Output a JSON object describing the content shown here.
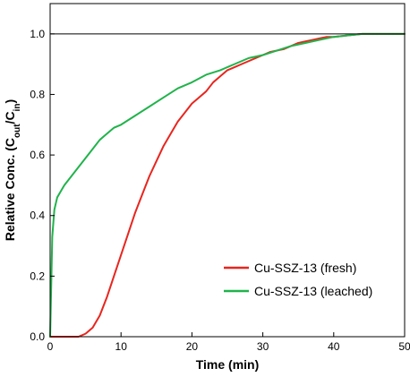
{
  "chart_data": {
    "type": "line",
    "xlabel": "Time (min)",
    "ylabel": {
      "prefix": "Relative Conc. (C",
      "sub1": "out",
      "mid": "/C",
      "sub2": "in",
      "suffix": ")"
    },
    "xlim": [
      0,
      50
    ],
    "ylim": [
      0,
      1.1
    ],
    "x_ticks": [
      0,
      10,
      20,
      30,
      40,
      50
    ],
    "y_ticks": [
      0.0,
      0.2,
      0.4,
      0.6,
      0.8,
      1.0
    ],
    "x_tick_labels": [
      "0",
      "10",
      "20",
      "30",
      "40",
      "50"
    ],
    "y_tick_labels": [
      "0.0",
      "0.2",
      "0.4",
      "0.6",
      "0.8",
      "1.0"
    ],
    "reference_line_y": 1.0,
    "grid": false,
    "legend_position": "bottom-right",
    "series": [
      {
        "name": "Cu-SSZ-13 (fresh)",
        "color": "#e8251e",
        "x": [
          0,
          4,
          5,
          6,
          7,
          8,
          9,
          10,
          11,
          12,
          13,
          14,
          15,
          16,
          17,
          18,
          19,
          20,
          21,
          22,
          23,
          24,
          25,
          26,
          27,
          28,
          29,
          30,
          31,
          32,
          33,
          34,
          35,
          36,
          37,
          38,
          39,
          40,
          42,
          44,
          46,
          48,
          50
        ],
        "y": [
          0.0,
          0.0,
          0.01,
          0.03,
          0.07,
          0.13,
          0.2,
          0.27,
          0.34,
          0.41,
          0.47,
          0.53,
          0.58,
          0.63,
          0.67,
          0.71,
          0.74,
          0.77,
          0.79,
          0.81,
          0.84,
          0.86,
          0.88,
          0.89,
          0.9,
          0.91,
          0.92,
          0.93,
          0.94,
          0.945,
          0.95,
          0.96,
          0.97,
          0.975,
          0.98,
          0.985,
          0.99,
          0.99,
          0.995,
          1.0,
          1.0,
          1.0,
          1.0
        ]
      },
      {
        "name": "Cu-SSZ-13 (leached)",
        "color": "#20b34b",
        "x": [
          0,
          0.3,
          0.6,
          1,
          1.5,
          2,
          3,
          4,
          5,
          6,
          7,
          8,
          9,
          10,
          12,
          14,
          16,
          18,
          20,
          22,
          24,
          26,
          28,
          30,
          32,
          34,
          36,
          38,
          40,
          42,
          44,
          46,
          48,
          50
        ],
        "y": [
          0.0,
          0.33,
          0.42,
          0.46,
          0.48,
          0.5,
          0.53,
          0.56,
          0.59,
          0.62,
          0.65,
          0.67,
          0.69,
          0.7,
          0.73,
          0.76,
          0.79,
          0.82,
          0.84,
          0.865,
          0.88,
          0.9,
          0.92,
          0.93,
          0.945,
          0.96,
          0.97,
          0.98,
          0.99,
          0.995,
          1.0,
          1.0,
          1.0,
          1.0
        ]
      }
    ]
  }
}
